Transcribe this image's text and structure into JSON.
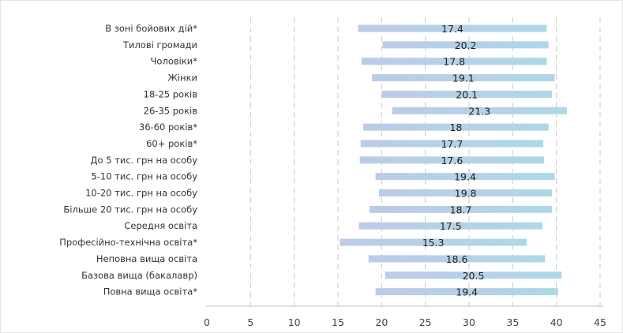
{
  "chart_data": {
    "type": "bar",
    "orientation": "horizontal",
    "xlim": [
      0,
      45
    ],
    "x_ticks": [
      0,
      5,
      10,
      15,
      20,
      25,
      30,
      35,
      40,
      45
    ],
    "grid": "vertical-dashed",
    "categories": [
      "В зоні бойових дій*",
      "Тилові громади",
      "Чоловіки*",
      "Жінки",
      "18-25 років",
      "26-35 років",
      "36-60 років*",
      "60+ років*",
      "До 5 тис. грн на особу",
      "5-10 тис. грн на особу",
      "10-20 тис. грн на особу",
      "Більше 20 тис. грн на особу",
      "Середня освіта",
      "Професійно-технічна освіта*",
      "Неповна вища освіта",
      "Базова вища (бакалавр)",
      "Повна вища освіта*"
    ],
    "ranges": [
      [
        17.3,
        38.9
      ],
      [
        20.1,
        39.1
      ],
      [
        17.7,
        38.9
      ],
      [
        18.9,
        39.8
      ],
      [
        20.0,
        39.5
      ],
      [
        21.2,
        41.2
      ],
      [
        17.9,
        39.1
      ],
      [
        17.6,
        38.5
      ],
      [
        17.5,
        38.6
      ],
      [
        19.3,
        39.8
      ],
      [
        19.7,
        39.5
      ],
      [
        18.6,
        39.5
      ],
      [
        17.4,
        38.4
      ],
      [
        15.2,
        36.6
      ],
      [
        18.5,
        38.7
      ],
      [
        20.4,
        40.6
      ],
      [
        19.3,
        40.2
      ]
    ],
    "values": [
      17.4,
      20.2,
      17.8,
      19.1,
      20.1,
      21.3,
      18,
      17.7,
      17.6,
      19.4,
      19.8,
      18.7,
      17.5,
      15.3,
      18.6,
      20.5,
      19.4
    ],
    "data_labels": [
      "17.4",
      "20.2",
      "17.8",
      "19.1",
      "20.1",
      "21.3",
      "18",
      "17.7",
      "17.6",
      "19.4",
      "19.8",
      "18.7",
      "17.5",
      "15.3",
      "18.6",
      "20.5",
      "19.4"
    ],
    "colors": {
      "bar_start": "#bccbe8",
      "bar_end": "#aed8e6",
      "grid": "#c9c9c9",
      "axis": "#bfbfbf"
    }
  }
}
